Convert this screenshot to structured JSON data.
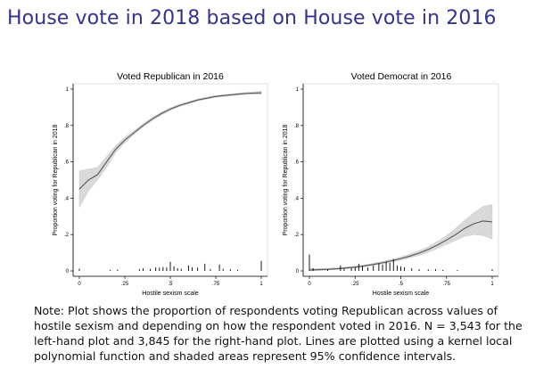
{
  "slide": {
    "title": "House vote in 2018 based on House vote in 2016",
    "note": "Note: Plot shows the proportion of respondents voting Republican across values of hostile sexism and depending on how the respondent voted in 2016. N = 3,543 for the left-hand plot and 3,845 for the right-hand plot. Lines are plotted using a kernel local polynomial function and shaded areas represent 95% confidence intervals."
  },
  "colors": {
    "title": "#33338f",
    "line": "#555555",
    "band": "#d9d9d9",
    "frame": "#000000"
  },
  "chart_data": [
    {
      "type": "line",
      "title": "Voted Republican in 2016",
      "xlabel": "Hostile sexism scale",
      "ylabel": "Proportion voting for Republican in 2018",
      "xlim": [
        0,
        1
      ],
      "ylim": [
        0,
        1
      ],
      "xticks": [
        0,
        0.25,
        0.5,
        0.75,
        1
      ],
      "xtick_labels": [
        "0",
        ".25",
        ".5",
        ".75",
        "1"
      ],
      "yticks": [
        0,
        0.2,
        0.4,
        0.6,
        0.8,
        1
      ],
      "ytick_labels": [
        "0",
        ".2",
        ".4",
        ".6",
        ".8",
        "1"
      ],
      "grid": false,
      "x": [
        0,
        0.05,
        0.1,
        0.15,
        0.2,
        0.25,
        0.3,
        0.35,
        0.4,
        0.45,
        0.5,
        0.55,
        0.6,
        0.65,
        0.7,
        0.75,
        0.8,
        0.85,
        0.9,
        0.95,
        1
      ],
      "fit": [
        0.45,
        0.5,
        0.53,
        0.6,
        0.67,
        0.72,
        0.76,
        0.8,
        0.835,
        0.865,
        0.89,
        0.91,
        0.925,
        0.94,
        0.95,
        0.96,
        0.965,
        0.97,
        0.975,
        0.978,
        0.98
      ],
      "ci_low": [
        0.35,
        0.44,
        0.5,
        0.57,
        0.65,
        0.705,
        0.75,
        0.79,
        0.826,
        0.857,
        0.883,
        0.904,
        0.92,
        0.935,
        0.945,
        0.955,
        0.96,
        0.965,
        0.97,
        0.972,
        0.972
      ],
      "ci_high": [
        0.55,
        0.56,
        0.57,
        0.63,
        0.69,
        0.735,
        0.77,
        0.81,
        0.844,
        0.873,
        0.897,
        0.916,
        0.93,
        0.945,
        0.955,
        0.965,
        0.97,
        0.975,
        0.98,
        0.984,
        0.988
      ],
      "histogram": [
        {
          "x": 0.0,
          "h": 0.012
        },
        {
          "x": 0.17,
          "h": 0.006
        },
        {
          "x": 0.21,
          "h": 0.008
        },
        {
          "x": 0.33,
          "h": 0.01
        },
        {
          "x": 0.35,
          "h": 0.015
        },
        {
          "x": 0.39,
          "h": 0.012
        },
        {
          "x": 0.42,
          "h": 0.02
        },
        {
          "x": 0.44,
          "h": 0.018
        },
        {
          "x": 0.46,
          "h": 0.022
        },
        {
          "x": 0.48,
          "h": 0.02
        },
        {
          "x": 0.5,
          "h": 0.05
        },
        {
          "x": 0.52,
          "h": 0.025
        },
        {
          "x": 0.54,
          "h": 0.015
        },
        {
          "x": 0.56,
          "h": 0.012
        },
        {
          "x": 0.6,
          "h": 0.03
        },
        {
          "x": 0.62,
          "h": 0.02
        },
        {
          "x": 0.65,
          "h": 0.018
        },
        {
          "x": 0.69,
          "h": 0.04
        },
        {
          "x": 0.72,
          "h": 0.01
        },
        {
          "x": 0.77,
          "h": 0.035
        },
        {
          "x": 0.79,
          "h": 0.012
        },
        {
          "x": 0.83,
          "h": 0.01
        },
        {
          "x": 0.87,
          "h": 0.006
        },
        {
          "x": 1.0,
          "h": 0.055
        }
      ]
    },
    {
      "type": "line",
      "title": "Voted Democrat in 2016",
      "xlabel": "Hostile sexism scale",
      "ylabel": "Proportion voting for Republican in 2018",
      "xlim": [
        0,
        1
      ],
      "ylim": [
        0,
        1
      ],
      "xticks": [
        0,
        0.25,
        0.5,
        0.75,
        1
      ],
      "xtick_labels": [
        "0",
        ".25",
        ".5",
        ".75",
        "1"
      ],
      "yticks": [
        0,
        0.2,
        0.4,
        0.6,
        0.8,
        1
      ],
      "ytick_labels": [
        "0",
        ".2",
        ".4",
        ".6",
        ".8",
        "1"
      ],
      "grid": false,
      "x": [
        0,
        0.05,
        0.1,
        0.15,
        0.2,
        0.25,
        0.3,
        0.35,
        0.4,
        0.45,
        0.5,
        0.55,
        0.6,
        0.65,
        0.7,
        0.75,
        0.8,
        0.85,
        0.9,
        0.95,
        1
      ],
      "fit": [
        0.005,
        0.007,
        0.009,
        0.012,
        0.016,
        0.021,
        0.028,
        0.036,
        0.045,
        0.056,
        0.068,
        0.082,
        0.098,
        0.118,
        0.142,
        0.17,
        0.2,
        0.235,
        0.26,
        0.275,
        0.27
      ],
      "ci_low": [
        0.0,
        0.002,
        0.005,
        0.008,
        0.012,
        0.017,
        0.023,
        0.031,
        0.039,
        0.049,
        0.06,
        0.072,
        0.086,
        0.103,
        0.123,
        0.146,
        0.168,
        0.19,
        0.2,
        0.195,
        0.175
      ],
      "ci_high": [
        0.012,
        0.013,
        0.014,
        0.017,
        0.021,
        0.026,
        0.033,
        0.042,
        0.052,
        0.063,
        0.077,
        0.093,
        0.111,
        0.134,
        0.162,
        0.195,
        0.235,
        0.28,
        0.32,
        0.355,
        0.365
      ],
      "histogram": [
        {
          "x": 0.0,
          "h": 0.09
        },
        {
          "x": 0.02,
          "h": 0.015
        },
        {
          "x": 0.1,
          "h": 0.008
        },
        {
          "x": 0.17,
          "h": 0.03
        },
        {
          "x": 0.19,
          "h": 0.012
        },
        {
          "x": 0.23,
          "h": 0.015
        },
        {
          "x": 0.25,
          "h": 0.02
        },
        {
          "x": 0.27,
          "h": 0.04
        },
        {
          "x": 0.29,
          "h": 0.025
        },
        {
          "x": 0.32,
          "h": 0.02
        },
        {
          "x": 0.35,
          "h": 0.03
        },
        {
          "x": 0.38,
          "h": 0.04
        },
        {
          "x": 0.4,
          "h": 0.035
        },
        {
          "x": 0.42,
          "h": 0.05
        },
        {
          "x": 0.44,
          "h": 0.045
        },
        {
          "x": 0.46,
          "h": 0.065
        },
        {
          "x": 0.48,
          "h": 0.03
        },
        {
          "x": 0.5,
          "h": 0.025
        },
        {
          "x": 0.52,
          "h": 0.02
        },
        {
          "x": 0.56,
          "h": 0.015
        },
        {
          "x": 0.6,
          "h": 0.01
        },
        {
          "x": 0.65,
          "h": 0.008
        },
        {
          "x": 0.69,
          "h": 0.01
        },
        {
          "x": 0.73,
          "h": 0.006
        },
        {
          "x": 0.81,
          "h": 0.005
        },
        {
          "x": 1.0,
          "h": 0.01
        }
      ]
    }
  ]
}
